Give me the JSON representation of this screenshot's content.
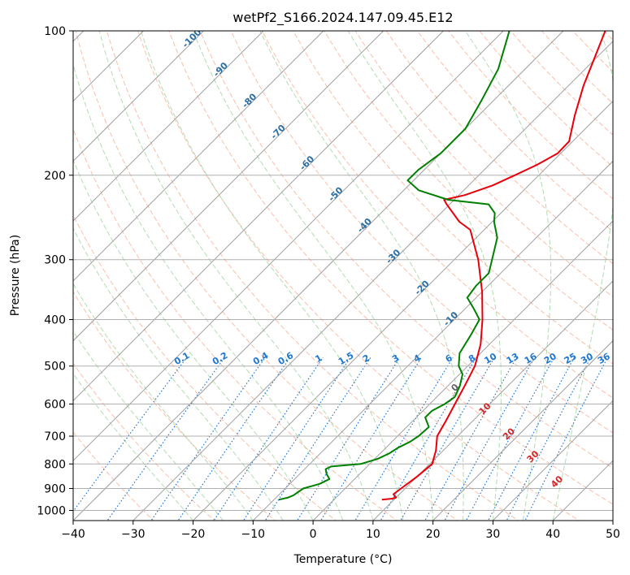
{
  "chart_data": {
    "type": "skew-t",
    "title": "wetPf2_S166.2024.147.09.45.E12",
    "xlabel": "Temperature (°C)",
    "ylabel": "Pressure (hPa)",
    "xlim": [
      -40,
      50
    ],
    "ylim_hpa": [
      1050,
      100
    ],
    "y_scale": "log",
    "x_ticks": [
      -40,
      -30,
      -20,
      -10,
      0,
      10,
      20,
      30,
      40,
      50
    ],
    "x_tick_labels": [
      "−40",
      "−30",
      "−20",
      "−10",
      "0",
      "10",
      "20",
      "30",
      "40",
      "50"
    ],
    "y_ticks": [
      1000,
      900,
      800,
      700,
      600,
      500,
      400,
      300,
      200,
      100
    ],
    "y_tick_labels": [
      "1000",
      "900",
      "800",
      "700",
      "600",
      "500",
      "400",
      "300",
      "200",
      "100"
    ],
    "grid": true,
    "colors": {
      "temperature": "#e8000b",
      "dewpoint": "#008000",
      "isotherm": "#a0a0a0",
      "dry_adiabat": "#f7a98d",
      "moist_adiabat": "#9fd39f",
      "mixing_ratio": "#1f77d4",
      "isotherm_label": "#2b6fa3",
      "theta_e_label": "#d62728"
    },
    "series": [
      {
        "role": "temperature",
        "points": [
          {
            "p": 950,
            "t": 8.0
          },
          {
            "p": 945,
            "t": 9.5
          },
          {
            "p": 940,
            "t": 10.0
          },
          {
            "p": 925,
            "t": 9.0
          },
          {
            "p": 900,
            "t": 9.3
          },
          {
            "p": 850,
            "t": 10.0
          },
          {
            "p": 800,
            "t": 10.4
          },
          {
            "p": 750,
            "t": 8.8
          },
          {
            "p": 700,
            "t": 6.6
          },
          {
            "p": 650,
            "t": 5.5
          },
          {
            "p": 600,
            "t": 4.2
          },
          {
            "p": 550,
            "t": 2.8
          },
          {
            "p": 500,
            "t": 1.2
          },
          {
            "p": 450,
            "t": -1.5
          },
          {
            "p": 400,
            "t": -5.3
          },
          {
            "p": 350,
            "t": -10.0
          },
          {
            "p": 300,
            "t": -16.0
          },
          {
            "p": 260,
            "t": -22.3
          },
          {
            "p": 250,
            "t": -25.5
          },
          {
            "p": 230,
            "t": -30.5
          },
          {
            "p": 225,
            "t": -31.7
          },
          {
            "p": 220,
            "t": -29.0
          },
          {
            "p": 210,
            "t": -26.0
          },
          {
            "p": 200,
            "t": -24.0
          },
          {
            "p": 190,
            "t": -22.0
          },
          {
            "p": 180,
            "t": -20.5
          },
          {
            "p": 170,
            "t": -20.6
          },
          {
            "p": 150,
            "t": -24.0
          },
          {
            "p": 130,
            "t": -27.5
          },
          {
            "p": 100,
            "t": -33.0
          }
        ]
      },
      {
        "role": "dewpoint",
        "points": [
          {
            "p": 950,
            "t": -9.2
          },
          {
            "p": 940,
            "t": -8.0
          },
          {
            "p": 930,
            "t": -7.5
          },
          {
            "p": 900,
            "t": -7.0
          },
          {
            "p": 880,
            "t": -5.0
          },
          {
            "p": 860,
            "t": -4.2
          },
          {
            "p": 840,
            "t": -5.5
          },
          {
            "p": 820,
            "t": -6.5
          },
          {
            "p": 810,
            "t": -6.0
          },
          {
            "p": 800,
            "t": -1.5
          },
          {
            "p": 780,
            "t": 0.5
          },
          {
            "p": 760,
            "t": 1.5
          },
          {
            "p": 740,
            "t": 2.0
          },
          {
            "p": 720,
            "t": 3.0
          },
          {
            "p": 700,
            "t": 3.5
          },
          {
            "p": 670,
            "t": 3.7
          },
          {
            "p": 640,
            "t": 1.5
          },
          {
            "p": 620,
            "t": 1.5
          },
          {
            "p": 600,
            "t": 2.5
          },
          {
            "p": 580,
            "t": 3.0
          },
          {
            "p": 550,
            "t": 2.0
          },
          {
            "p": 520,
            "t": 0.5
          },
          {
            "p": 500,
            "t": -1.5
          },
          {
            "p": 470,
            "t": -3.5
          },
          {
            "p": 430,
            "t": -4.7
          },
          {
            "p": 400,
            "t": -5.8
          },
          {
            "p": 380,
            "t": -8.5
          },
          {
            "p": 360,
            "t": -11.5
          },
          {
            "p": 340,
            "t": -12.0
          },
          {
            "p": 320,
            "t": -12.0
          },
          {
            "p": 300,
            "t": -13.7
          },
          {
            "p": 270,
            "t": -16.5
          },
          {
            "p": 250,
            "t": -19.7
          },
          {
            "p": 240,
            "t": -21.0
          },
          {
            "p": 230,
            "t": -23.5
          },
          {
            "p": 225,
            "t": -31.0
          },
          {
            "p": 215,
            "t": -37.5
          },
          {
            "p": 205,
            "t": -41.0
          },
          {
            "p": 195,
            "t": -41.0
          },
          {
            "p": 180,
            "t": -40.0
          },
          {
            "p": 160,
            "t": -40.0
          },
          {
            "p": 140,
            "t": -42.0
          },
          {
            "p": 120,
            "t": -44.5
          },
          {
            "p": 100,
            "t": -49.0
          }
        ]
      }
    ],
    "isotherm_labels": [
      "-100",
      "-90",
      "-80",
      "-70",
      "-60",
      "-50",
      "-40",
      "-30",
      "-20",
      "-10"
    ],
    "isotherm_label_values": [
      -100,
      -90,
      -80,
      -70,
      -60,
      -50,
      -40,
      -30,
      -20,
      -10
    ],
    "mixing_ratio_labels": [
      "0.1",
      "0.2",
      "0.4",
      "0.6",
      "1",
      "1.5",
      "2",
      "3",
      "4",
      "6",
      "8",
      "10",
      "13",
      "16",
      "20",
      "25",
      "30",
      "36"
    ],
    "mixing_ratio_values": [
      0.1,
      0.2,
      0.4,
      0.6,
      1,
      1.5,
      2,
      3,
      4,
      6,
      8,
      10,
      13,
      16,
      20,
      25,
      30,
      36
    ],
    "theta_e_labels": [
      "0",
      "10",
      "20",
      "30",
      "40"
    ],
    "theta_e_values": [
      0,
      10,
      20,
      30,
      40
    ]
  }
}
